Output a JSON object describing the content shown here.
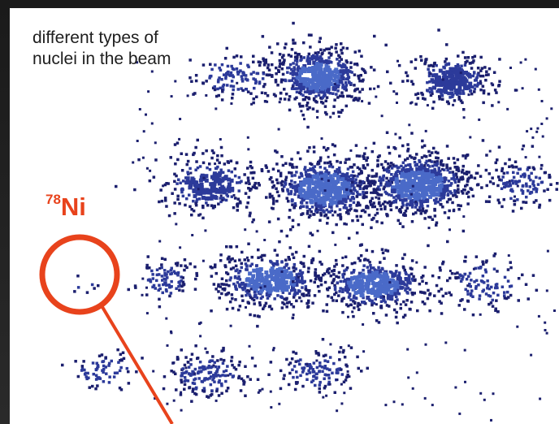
{
  "annotation": {
    "line1": "different types of",
    "line2": "nuclei in the beam",
    "isotope_mass": "78",
    "isotope_symbol": "Ni",
    "highlight_color": "#e8431c"
  },
  "colors": {
    "dot_dark": "#1b1f6e",
    "dot_mid": "#2c3a9a",
    "dot_light": "#4a6ac8",
    "background": "#ffffff",
    "frame": "#222222"
  },
  "chart_data": {
    "type": "scatter",
    "title": "",
    "xlabel": "",
    "ylabel": "",
    "grid": false,
    "legend": "none",
    "clusters": [
      {
        "cx": 0.56,
        "cy": 0.16,
        "count": 520,
        "spread": [
          0.06,
          0.05
        ]
      },
      {
        "cx": 0.8,
        "cy": 0.17,
        "count": 280,
        "spread": [
          0.05,
          0.04
        ]
      },
      {
        "cx": 0.41,
        "cy": 0.16,
        "count": 120,
        "spread": [
          0.05,
          0.04
        ]
      },
      {
        "cx": 0.36,
        "cy": 0.42,
        "count": 260,
        "spread": [
          0.06,
          0.045
        ]
      },
      {
        "cx": 0.57,
        "cy": 0.43,
        "count": 600,
        "spread": [
          0.07,
          0.055
        ]
      },
      {
        "cx": 0.74,
        "cy": 0.42,
        "count": 650,
        "spread": [
          0.07,
          0.055
        ]
      },
      {
        "cx": 0.93,
        "cy": 0.42,
        "count": 120,
        "spread": [
          0.04,
          0.04
        ]
      },
      {
        "cx": 0.28,
        "cy": 0.65,
        "count": 90,
        "spread": [
          0.03,
          0.035
        ]
      },
      {
        "cx": 0.47,
        "cy": 0.65,
        "count": 420,
        "spread": [
          0.07,
          0.045
        ]
      },
      {
        "cx": 0.66,
        "cy": 0.66,
        "count": 440,
        "spread": [
          0.07,
          0.045
        ]
      },
      {
        "cx": 0.86,
        "cy": 0.66,
        "count": 120,
        "spread": [
          0.05,
          0.04
        ]
      },
      {
        "cx": 0.17,
        "cy": 0.87,
        "count": 70,
        "spread": [
          0.04,
          0.03
        ]
      },
      {
        "cx": 0.36,
        "cy": 0.88,
        "count": 170,
        "spread": [
          0.05,
          0.035
        ]
      },
      {
        "cx": 0.56,
        "cy": 0.87,
        "count": 120,
        "spread": [
          0.05,
          0.035
        ]
      },
      {
        "cx": 0.13,
        "cy": 0.66,
        "count": 7,
        "spread": [
          0.02,
          0.02
        ]
      }
    ],
    "background_noise": 260,
    "highlight": {
      "label": "78Ni",
      "cx": 0.13,
      "cy": 0.66
    }
  }
}
